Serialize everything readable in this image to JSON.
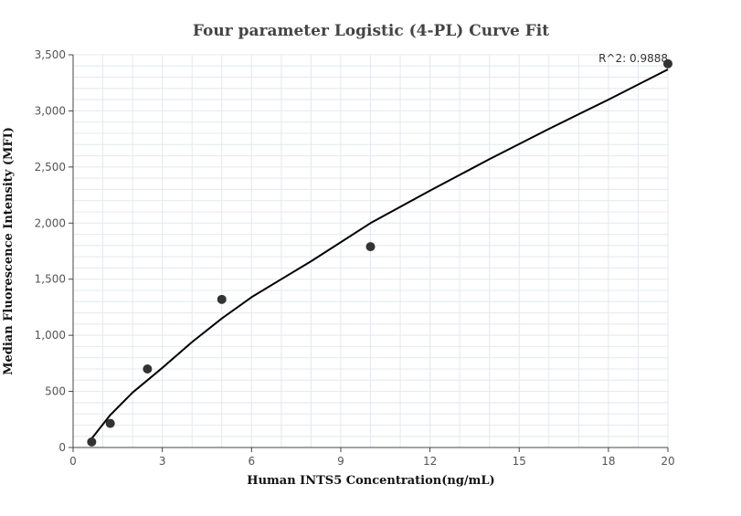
{
  "chart_data": {
    "type": "scatter",
    "title": "Four parameter Logistic (4-PL) Curve Fit",
    "xlabel": "Human INTS5 Concentration(ng/mL)",
    "ylabel": "Median Fluorescence Intensity (MFI)",
    "xlim": [
      0,
      20
    ],
    "ylim": [
      0,
      3500
    ],
    "x_ticks": [
      0,
      3,
      6,
      9,
      12,
      15,
      18,
      20
    ],
    "y_ticks": [
      0,
      500,
      1000,
      1500,
      2000,
      2500,
      3000,
      3500
    ],
    "x_tick_labels": [
      "0",
      "3",
      "6",
      "9",
      "12",
      "15",
      "18",
      "20"
    ],
    "y_tick_labels": [
      "0",
      "500",
      "1,000",
      "1,500",
      "2,000",
      "2,500",
      "3,000",
      "3,500"
    ],
    "x_minor_step": 1,
    "y_minor_step": 100,
    "grid": true,
    "points": {
      "x": [
        0.625,
        1.25,
        2.5,
        5,
        10,
        20
      ],
      "y": [
        50,
        215,
        700,
        1320,
        1790,
        3420
      ],
      "color": "#333333"
    },
    "fit_curve": {
      "x": [
        0.625,
        1.25,
        2,
        2.5,
        3,
        4,
        5,
        6,
        7,
        8,
        10,
        12,
        14,
        16,
        18,
        20
      ],
      "y": [
        80,
        290,
        490,
        600,
        710,
        940,
        1150,
        1340,
        1500,
        1660,
        2000,
        2290,
        2570,
        2840,
        3100,
        3370
      ],
      "color": "#000000"
    },
    "annotation": "R^2: 0.9888"
  }
}
